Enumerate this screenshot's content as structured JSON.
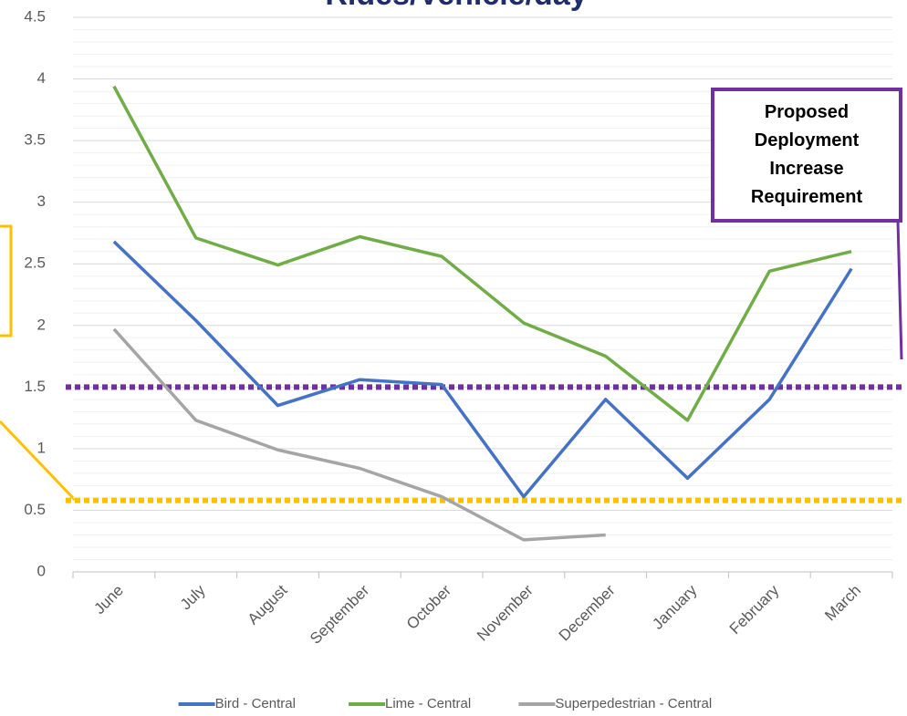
{
  "chart_data": {
    "type": "line",
    "title": "Rides/Vehicle/day",
    "categories": [
      "June",
      "July",
      "August",
      "September",
      "October",
      "November",
      "December",
      "January",
      "February",
      "March"
    ],
    "series": [
      {
        "name": "Bird - Central",
        "color": "#4472c4",
        "values": [
          2.68,
          2.04,
          1.35,
          1.56,
          1.52,
          0.61,
          1.4,
          0.76,
          1.4,
          2.46
        ]
      },
      {
        "name": "Lime - Central",
        "color": "#70ad47",
        "values": [
          3.94,
          2.71,
          2.49,
          2.72,
          2.56,
          2.02,
          1.75,
          1.23,
          2.44,
          2.6
        ]
      },
      {
        "name": "Superpedestrian - Central",
        "color": "#a5a5a5",
        "values": [
          1.97,
          1.23,
          0.99,
          0.84,
          0.61,
          0.26,
          0.3,
          null,
          null,
          null
        ]
      }
    ],
    "ylim": [
      0,
      4.5
    ],
    "yticks": [
      0,
      0.5,
      1,
      1.5,
      2,
      2.5,
      3,
      3.5,
      4,
      4.5
    ],
    "grid": true,
    "reference_lines": [
      {
        "value": 1.5,
        "color": "#7030a0"
      },
      {
        "value": 0.58,
        "color": "#ffc000"
      }
    ],
    "annotation": "Proposed Deployment Increase Requirement",
    "legend_position": "bottom"
  }
}
